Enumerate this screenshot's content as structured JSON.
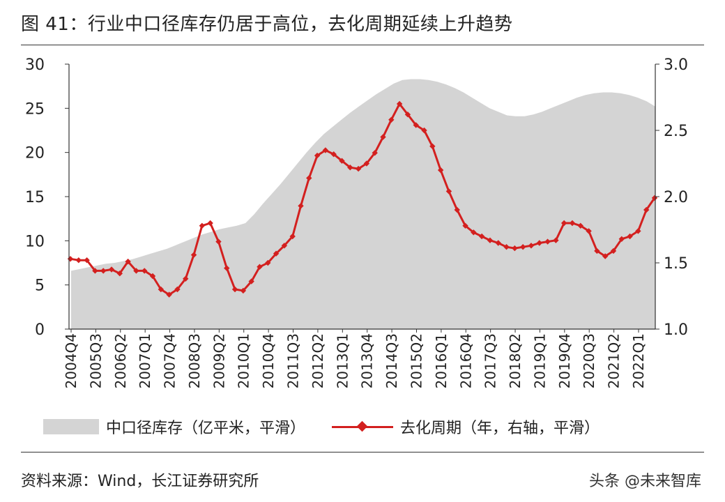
{
  "title": "图 41：行业中口径库存仍居于高位，去化周期延续上升趋势",
  "source": "资料来源：Wind，长江证券研究所",
  "watermark": "头条 @未来智库",
  "colors": {
    "area": "#d4d4d4",
    "line": "#d3201f"
  },
  "chart_data": {
    "type": "area+line",
    "x_tick_labels": [
      "2004Q4",
      "2005Q3",
      "2006Q2",
      "2007Q1",
      "2007Q4",
      "2008Q3",
      "2009Q2",
      "2010Q1",
      "2010Q4",
      "2011Q3",
      "2012Q2",
      "2013Q1",
      "2013Q4",
      "2014Q3",
      "2015Q2",
      "2016Q1",
      "2016Q4",
      "2017Q3",
      "2018Q2",
      "2019Q1",
      "2019Q4",
      "2020Q3",
      "2021Q2",
      "2022Q1"
    ],
    "y_left": {
      "ticks": [
        "0",
        "5",
        "10",
        "15",
        "20",
        "25",
        "30"
      ],
      "range": [
        0,
        30
      ]
    },
    "y_right": {
      "ticks": [
        "1.0",
        "1.5",
        "2.0",
        "2.5",
        "3.0"
      ],
      "range": [
        1.0,
        3.0
      ]
    },
    "grid": false,
    "legend_position": "bottom",
    "series": [
      {
        "name": "中口径库存（亿平米，平滑）",
        "type": "area",
        "axis": "left",
        "values": [
          6.6,
          6.8,
          7.0,
          7.2,
          7.4,
          7.5,
          7.7,
          7.9,
          8.2,
          8.5,
          8.8,
          9.1,
          9.5,
          9.9,
          10.3,
          10.7,
          11.0,
          11.3,
          11.5,
          11.7,
          12.0,
          13.0,
          14.2,
          15.3,
          16.4,
          17.6,
          18.8,
          20.0,
          21.1,
          22.1,
          22.9,
          23.7,
          24.5,
          25.2,
          25.9,
          26.6,
          27.2,
          27.8,
          28.2,
          28.3,
          28.3,
          28.2,
          28.0,
          27.7,
          27.3,
          26.8,
          26.2,
          25.6,
          25.0,
          24.6,
          24.2,
          24.1,
          24.1,
          24.3,
          24.6,
          25.0,
          25.4,
          25.8,
          26.2,
          26.5,
          26.7,
          26.8,
          26.8,
          26.7,
          26.5,
          26.2,
          25.8,
          25.2
        ]
      },
      {
        "name": "去化周期（年，右轴，平滑）",
        "type": "line",
        "axis": "right",
        "values": [
          1.53,
          1.52,
          1.52,
          1.44,
          1.44,
          1.45,
          1.42,
          1.51,
          1.44,
          1.44,
          1.4,
          1.3,
          1.26,
          1.3,
          1.38,
          1.56,
          1.78,
          1.8,
          1.66,
          1.46,
          1.3,
          1.29,
          1.36,
          1.47,
          1.5,
          1.57,
          1.63,
          1.7,
          1.93,
          2.14,
          2.31,
          2.35,
          2.32,
          2.27,
          2.22,
          2.21,
          2.25,
          2.33,
          2.45,
          2.58,
          2.7,
          2.62,
          2.54,
          2.5,
          2.38,
          2.2,
          2.04,
          1.9,
          1.78,
          1.73,
          1.7,
          1.67,
          1.65,
          1.62,
          1.61,
          1.62,
          1.63,
          1.65,
          1.66,
          1.67,
          1.8,
          1.8,
          1.78,
          1.74,
          1.59,
          1.55,
          1.59,
          1.68,
          1.7,
          1.74,
          1.9,
          1.99
        ]
      }
    ]
  }
}
